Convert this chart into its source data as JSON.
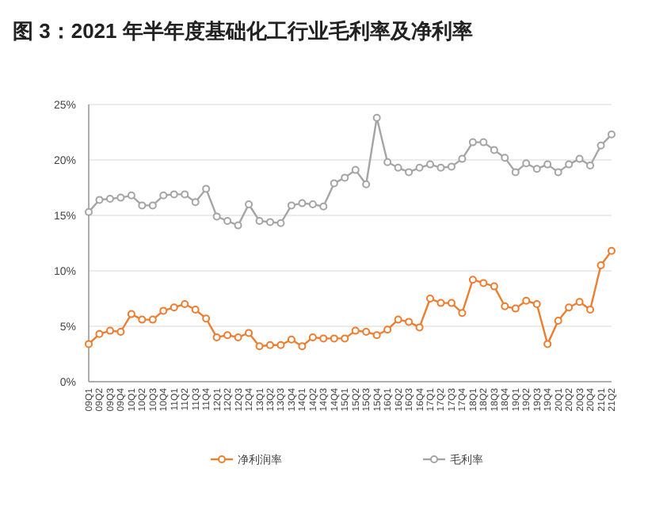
{
  "chart_data": {
    "type": "line",
    "title": "图 3：2021 年半年度基础化工行业毛利率及净利率",
    "categories": [
      "09Q1",
      "09Q2",
      "09Q3",
      "09Q4",
      "10Q1",
      "10Q2",
      "10Q3",
      "10Q4",
      "11Q1",
      "11Q2",
      "11Q3",
      "11Q4",
      "12Q1",
      "12Q2",
      "12Q3",
      "12Q4",
      "13Q1",
      "13Q2",
      "13Q3",
      "13Q4",
      "14Q1",
      "14Q2",
      "14Q3",
      "14Q4",
      "15Q1",
      "15Q2",
      "15Q3",
      "15Q4",
      "16Q1",
      "16Q2",
      "16Q3",
      "16Q4",
      "17Q1",
      "17Q2",
      "17Q3",
      "17Q4",
      "18Q1",
      "18Q2",
      "18Q3",
      "18Q4",
      "19Q1",
      "19Q2",
      "19Q3",
      "19Q4",
      "20Q1",
      "20Q2",
      "20Q3",
      "20Q4",
      "21Q1",
      "21Q2"
    ],
    "series": [
      {
        "name": "净利润率",
        "color": "#ed7d31",
        "values": [
          3.4,
          4.3,
          4.6,
          4.5,
          6.1,
          5.6,
          5.6,
          6.4,
          6.7,
          7.0,
          6.5,
          5.7,
          4.0,
          4.2,
          4.0,
          4.4,
          3.2,
          3.3,
          3.3,
          3.8,
          3.2,
          4.0,
          3.9,
          3.9,
          3.9,
          4.6,
          4.5,
          4.2,
          4.7,
          5.6,
          5.4,
          4.9,
          7.5,
          7.1,
          7.1,
          6.2,
          9.2,
          8.9,
          8.6,
          6.8,
          6.6,
          7.3,
          7.0,
          3.4,
          5.5,
          6.7,
          7.2,
          6.5,
          10.5,
          11.8
        ]
      },
      {
        "name": "毛利率",
        "color": "#a5a5a5",
        "values": [
          15.3,
          16.4,
          16.5,
          16.6,
          16.8,
          15.9,
          15.9,
          16.8,
          16.9,
          16.9,
          16.2,
          17.4,
          14.9,
          14.5,
          14.1,
          16.0,
          14.5,
          14.4,
          14.3,
          15.9,
          16.1,
          16.0,
          15.8,
          17.9,
          18.4,
          19.1,
          17.8,
          23.8,
          19.8,
          19.3,
          18.9,
          19.3,
          19.6,
          19.3,
          19.4,
          20.1,
          21.6,
          21.6,
          20.9,
          20.2,
          18.9,
          19.7,
          19.2,
          19.6,
          18.9,
          19.6,
          20.1,
          19.5,
          21.3,
          22.3
        ]
      }
    ],
    "ylim": [
      0,
      25
    ],
    "yticks": [
      {
        "value": 0,
        "label": "0%"
      },
      {
        "value": 5,
        "label": "5%"
      },
      {
        "value": 10,
        "label": "10%"
      },
      {
        "value": 15,
        "label": "15%"
      },
      {
        "value": 20,
        "label": "20%"
      },
      {
        "value": 25,
        "label": "25%"
      }
    ],
    "grid": "y",
    "legend": "bottom",
    "marker": "circle",
    "line_style": "solid"
  }
}
